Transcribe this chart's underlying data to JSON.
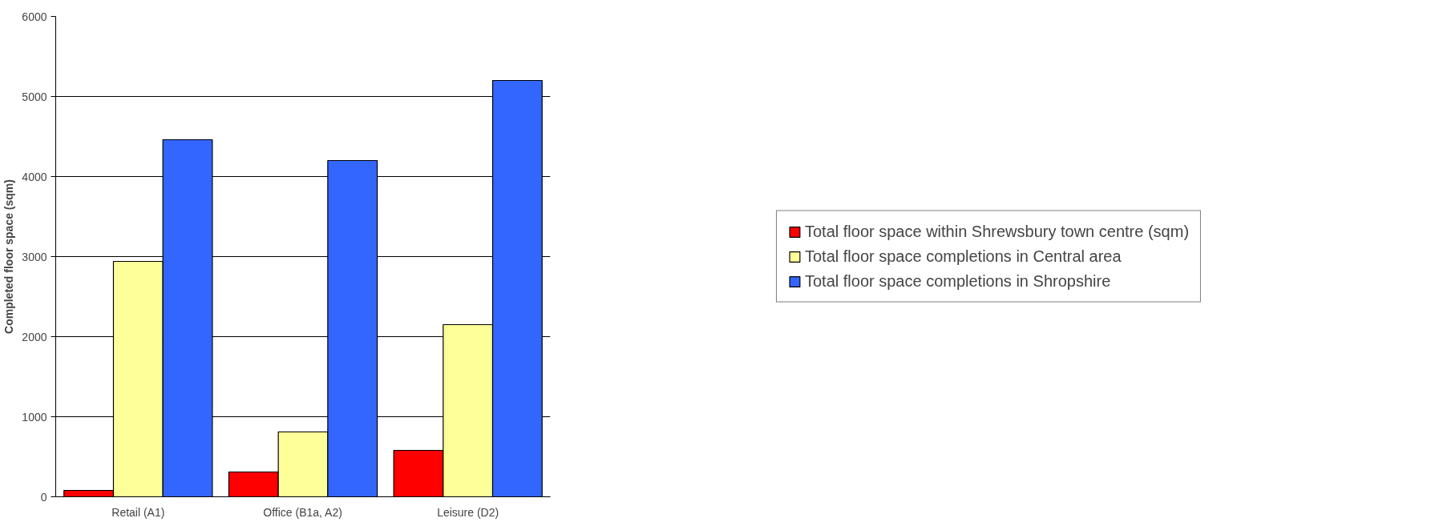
{
  "chart_data": {
    "type": "bar",
    "ylabel": "Completed floor space (sqm)",
    "categories": [
      "Retail (A1)",
      "Office (B1a, A2)",
      "Leisure (D2)"
    ],
    "series": [
      {
        "name": "Total floor space within Shrewsbury town centre (sqm)",
        "color": "#ff0000",
        "values": [
          80,
          310,
          580
        ]
      },
      {
        "name": "Total floor space completions in Central area",
        "color": "#ffff99",
        "values": [
          2940,
          810,
          2150
        ]
      },
      {
        "name": "Total floor space completions in Shropshire",
        "color": "#3366ff",
        "values": [
          4460,
          4200,
          5200
        ]
      }
    ],
    "ylim": [
      0,
      6000
    ],
    "yticks": [
      0,
      1000,
      2000,
      3000,
      4000,
      5000,
      6000
    ],
    "grid": "y",
    "legend": "right"
  }
}
